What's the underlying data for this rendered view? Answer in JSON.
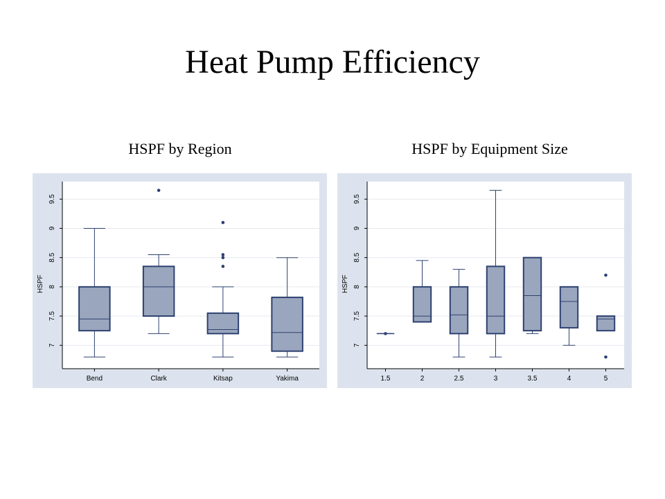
{
  "title": "Heat Pump Efficiency",
  "chart_data": [
    {
      "type": "box",
      "title": "HSPF by Region",
      "ylabel": "HSPF",
      "xlabel": "",
      "ylim": [
        6.6,
        9.8
      ],
      "yticks": [
        7,
        7.5,
        8,
        8.5,
        9,
        9.5
      ],
      "grid": true,
      "colors": {
        "box": "#9aa6bd",
        "stroke": "#2e4170",
        "panel": "#dde3ee"
      },
      "categories": [
        "Bend",
        "Clark",
        "Kitsap",
        "Yakima"
      ],
      "boxes": [
        {
          "min": 6.8,
          "q1": 7.25,
          "median": 7.45,
          "q3": 8.0,
          "max": 9.0,
          "outliers": []
        },
        {
          "min": 7.2,
          "q1": 7.5,
          "median": 8.0,
          "q3": 8.35,
          "max": 8.55,
          "outliers": [
            9.65
          ]
        },
        {
          "min": 6.8,
          "q1": 7.2,
          "median": 7.27,
          "q3": 7.55,
          "max": 8.0,
          "outliers": [
            8.35,
            8.5,
            8.55,
            9.1
          ]
        },
        {
          "min": 6.8,
          "q1": 6.9,
          "median": 7.22,
          "q3": 7.82,
          "max": 8.5,
          "outliers": []
        }
      ]
    },
    {
      "type": "box",
      "title": "HSPF by Equipment Size",
      "ylabel": "HSPF",
      "xlabel": "",
      "ylim": [
        6.6,
        9.8
      ],
      "yticks": [
        7,
        7.5,
        8,
        8.5,
        9,
        9.5
      ],
      "grid": true,
      "colors": {
        "box": "#9aa6bd",
        "stroke": "#2e4170",
        "panel": "#dde3ee"
      },
      "categories": [
        "1.5",
        "2",
        "2.5",
        "3",
        "3.5",
        "4",
        "5"
      ],
      "boxes": [
        {
          "min": 7.2,
          "q1": 7.2,
          "median": 7.2,
          "q3": 7.2,
          "max": 7.2,
          "outliers": [
            7.2
          ]
        },
        {
          "min": 7.4,
          "q1": 7.4,
          "median": 7.5,
          "q3": 8.0,
          "max": 8.45,
          "outliers": []
        },
        {
          "min": 6.8,
          "q1": 7.2,
          "median": 7.52,
          "q3": 8.0,
          "max": 8.3,
          "outliers": []
        },
        {
          "min": 6.8,
          "q1": 7.2,
          "median": 7.5,
          "q3": 8.35,
          "max": 9.65,
          "outliers": []
        },
        {
          "min": 7.2,
          "q1": 7.25,
          "median": 7.85,
          "q3": 8.5,
          "max": 8.5,
          "outliers": []
        },
        {
          "min": 7.0,
          "q1": 7.3,
          "median": 7.75,
          "q3": 8.0,
          "max": 8.0,
          "outliers": []
        },
        {
          "min": 7.25,
          "q1": 7.25,
          "median": 7.45,
          "q3": 7.5,
          "max": 7.5,
          "outliers": [
            8.2,
            6.8
          ]
        }
      ]
    }
  ]
}
